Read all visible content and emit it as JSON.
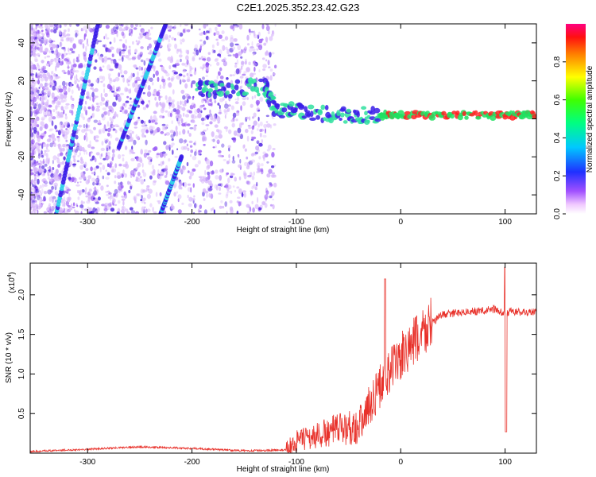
{
  "title": "C2E1.2025.352.23.42.G23",
  "colors": {
    "snr_line": "#e8312a",
    "axis": "#000000",
    "background": "#ffffff"
  },
  "chart_data": [
    {
      "type": "heatmap",
      "xlabel": "Height of straight line (km)",
      "ylabel": "Frequency (Hz)",
      "xlim": [
        -355,
        130
      ],
      "ylim": [
        -50,
        50
      ],
      "xticks": [
        "-300",
        "-200",
        "-100",
        "0",
        "100"
      ],
      "yticks": [
        "-40",
        "-20",
        "0",
        "20",
        "40"
      ],
      "colorbar": {
        "label": "Normalized spectral amplitude",
        "range": [
          0,
          1
        ],
        "ticks": [
          "0.0",
          "0.2",
          "0.4",
          "0.6",
          "0.8"
        ],
        "colormap": "rainbow"
      },
      "features": [
        {
          "name": "diagonal-streak-1",
          "x_start": -330,
          "y_start": -50,
          "x_end": -290,
          "y_end": 50
        },
        {
          "name": "diagonal-streak-2",
          "x_start": -270,
          "y_start": -15,
          "x_end": -225,
          "y_end": 50
        },
        {
          "name": "diagonal-streak-3",
          "x_start": -230,
          "y_start": -50,
          "x_end": -210,
          "y_end": -20
        },
        {
          "name": "signal-band",
          "points": [
            [
              -195,
              16
            ],
            [
              -170,
              15
            ],
            [
              -130,
              17
            ],
            [
              -120,
              5
            ],
            [
              -90,
              3
            ],
            [
              -50,
              2
            ],
            [
              -20,
              2
            ],
            [
              0,
              2
            ],
            [
              50,
              2
            ],
            [
              100,
              2
            ],
            [
              130,
              2
            ]
          ]
        }
      ]
    },
    {
      "type": "line",
      "xlabel": "Height of straight line (km)",
      "ylabel": "SNR (10 * v/v)",
      "y_multiplier": "(x10",
      "y_multiplier_exp": "4",
      "xlim": [
        -355,
        130
      ],
      "ylim": [
        0,
        2.4
      ],
      "xticks": [
        "-300",
        "-200",
        "-100",
        "0",
        "100"
      ],
      "yticks": [
        "0.5",
        "1.0",
        "1.5",
        "2.0"
      ],
      "series": [
        {
          "name": "SNR",
          "x": [
            -355,
            -300,
            -250,
            -200,
            -150,
            -110,
            -100,
            -80,
            -60,
            -40,
            -30,
            -20,
            -10,
            0,
            10,
            20,
            30,
            40,
            60,
            80,
            90,
            100,
            105,
            110,
            130
          ],
          "y": [
            0.02,
            0.05,
            0.08,
            0.06,
            0.03,
            0.04,
            0.15,
            0.22,
            0.3,
            0.35,
            0.6,
            0.85,
            1.05,
            1.2,
            1.35,
            1.5,
            1.65,
            1.75,
            1.78,
            1.8,
            1.82,
            1.75,
            1.8,
            1.78,
            1.78
          ]
        }
      ],
      "annotations": [
        {
          "x": -15,
          "y": 2.2,
          "label": "spike"
        },
        {
          "x": 100,
          "y": 2.35,
          "label": "spike"
        },
        {
          "x": 101,
          "y": 0.27,
          "label": "dip"
        }
      ]
    }
  ]
}
